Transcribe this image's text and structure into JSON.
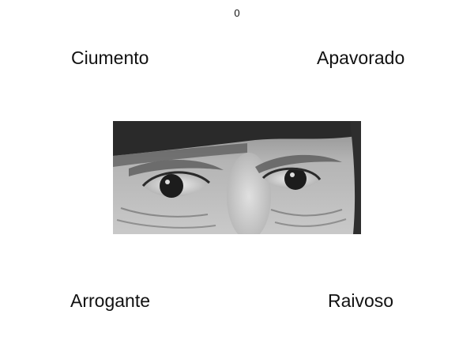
{
  "trial": {
    "counter": "0"
  },
  "options": {
    "top_left": "Ciumento",
    "top_right": "Apavorado",
    "bottom_left": "Arrogante",
    "bottom_right": "Raivoso"
  },
  "stimulus": {
    "icon": "eyes-photo"
  }
}
